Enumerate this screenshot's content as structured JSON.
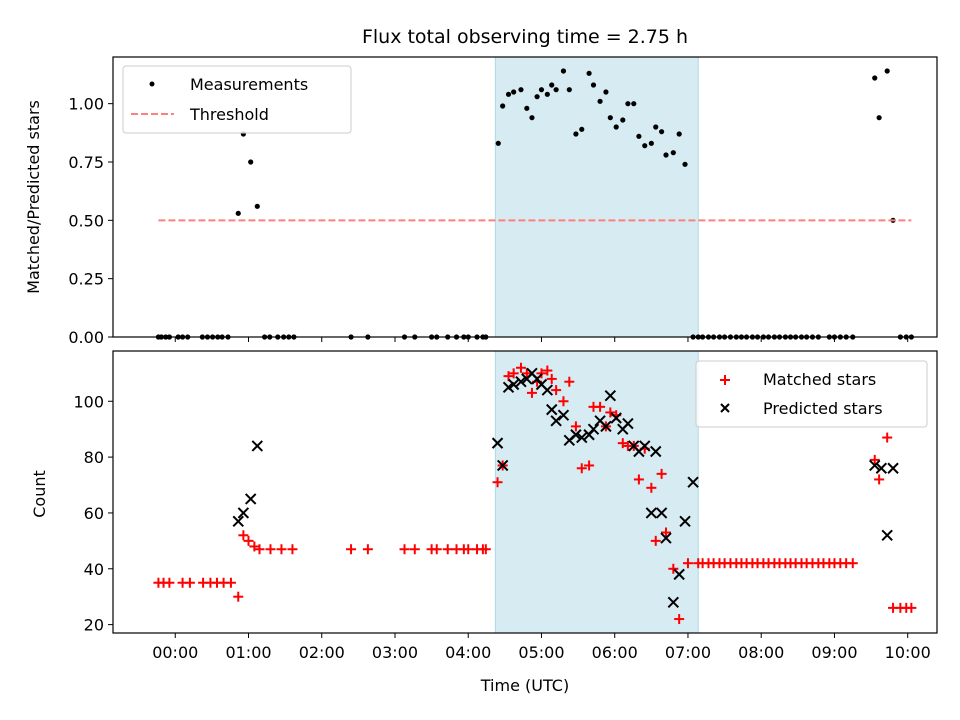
{
  "chart_data": [
    {
      "type": "scatter",
      "title": "Flux total observing time = 2.75 h",
      "xlabel": "",
      "ylabel": "Matched/Predicted stars",
      "ylim": [
        0,
        1.2
      ],
      "yticks": [
        0,
        0.25,
        0.5,
        0.75,
        1.0
      ],
      "ytick_labels": [
        "0.00",
        "0.25",
        "0.50",
        "0.75",
        "1.00"
      ],
      "xlim_hours": [
        -0.85,
        10.4
      ],
      "xticks_hours": [
        0,
        1,
        2,
        3,
        4,
        5,
        6,
        7,
        8,
        9,
        10
      ],
      "legend_position": "upper-left",
      "shaded_span_hours": [
        4.37,
        7.14
      ],
      "shaded_color": "#add8e6",
      "series": [
        {
          "name": "Measurements",
          "kind": "points",
          "color": "#000000",
          "x": [
            -0.23,
            -0.19,
            -0.13,
            -0.08,
            0.04,
            0.1,
            0.17,
            0.37,
            0.44,
            0.51,
            0.58,
            0.64,
            0.72,
            0.86,
            0.93,
            1.03,
            1.12,
            1.22,
            1.29,
            1.4,
            1.48,
            1.55,
            1.62,
            2.4,
            2.63,
            3.13,
            3.27,
            3.5,
            3.57,
            3.72,
            3.84,
            3.94,
            4.0,
            4.12,
            4.2,
            4.24,
            4.41,
            4.47,
            4.55,
            4.62,
            4.72,
            4.8,
            4.87,
            4.94,
            5.0,
            5.08,
            5.14,
            5.2,
            5.3,
            5.38,
            5.47,
            5.55,
            5.65,
            5.71,
            5.8,
            5.88,
            5.94,
            6.02,
            6.11,
            6.18,
            6.26,
            6.33,
            6.41,
            6.5,
            6.56,
            6.64,
            6.7,
            6.8,
            6.88,
            6.96,
            7.07,
            7.14,
            7.2,
            7.28,
            7.35,
            7.43,
            7.5,
            7.58,
            7.66,
            7.73,
            7.8,
            7.88,
            7.95,
            8.03,
            8.1,
            8.18,
            8.25,
            8.33,
            8.4,
            8.47,
            8.55,
            8.62,
            8.7,
            8.78,
            8.93,
            9.0,
            9.08,
            9.16,
            9.25,
            9.55,
            9.61,
            9.72,
            9.8,
            9.9,
            9.98,
            10.05
          ],
          "y": [
            0,
            0,
            0,
            0,
            0,
            0,
            0,
            0,
            0,
            0,
            0,
            0,
            0,
            0.53,
            0.87,
            0.75,
            0.56,
            0,
            0,
            0,
            0,
            0,
            0,
            0,
            0,
            0,
            0,
            0,
            0,
            0,
            0,
            0,
            0,
            0,
            0,
            0,
            0.83,
            0.99,
            1.04,
            1.05,
            1.06,
            0.98,
            0.94,
            1.03,
            1.06,
            1.04,
            1.08,
            1.06,
            1.14,
            1.06,
            0.87,
            0.89,
            1.13,
            1.08,
            1.01,
            1.05,
            0.94,
            0.9,
            0.93,
            1.0,
            1.0,
            0.86,
            0.82,
            0.83,
            0.9,
            0.88,
            0.78,
            0.79,
            0.87,
            0.74,
            0,
            0,
            0,
            0,
            0,
            0,
            0,
            0,
            0,
            0,
            0,
            0,
            0,
            0,
            0,
            0,
            0,
            0,
            0,
            0,
            0,
            0,
            0,
            0,
            0,
            0,
            0,
            0,
            0,
            1.11,
            0.94,
            1.14,
            0.5,
            0,
            0,
            0
          ]
        },
        {
          "name": "Threshold",
          "kind": "dashed-line",
          "color": "#ff7f7f",
          "x": [
            -0.23,
            10.05
          ],
          "y": [
            0.5,
            0.5
          ]
        }
      ]
    },
    {
      "type": "scatter",
      "title": "",
      "xlabel": "Time (UTC)",
      "ylabel": "Count",
      "ylim": [
        17,
        118
      ],
      "yticks": [
        20,
        40,
        60,
        80,
        100
      ],
      "ytick_labels": [
        "20",
        "40",
        "60",
        "80",
        "100"
      ],
      "xlim_hours": [
        -0.85,
        10.4
      ],
      "xticks_hours": [
        0,
        1,
        2,
        3,
        4,
        5,
        6,
        7,
        8,
        9,
        10
      ],
      "xtick_labels": [
        "00:00",
        "01:00",
        "02:00",
        "03:00",
        "04:00",
        "05:00",
        "06:00",
        "07:00",
        "08:00",
        "09:00",
        "10:00"
      ],
      "legend_position": "upper-right",
      "shaded_span_hours": [
        4.37,
        7.14
      ],
      "series": [
        {
          "name": "Matched stars",
          "marker": "+",
          "color": "#ff0000",
          "x": [
            -0.23,
            -0.16,
            -0.08,
            0.1,
            0.2,
            0.38,
            0.48,
            0.57,
            0.66,
            0.76,
            0.86,
            0.93,
            1.0,
            1.08,
            1.15,
            1.3,
            1.45,
            1.6,
            2.4,
            2.63,
            3.13,
            3.27,
            3.5,
            3.57,
            3.72,
            3.84,
            3.94,
            4.0,
            4.12,
            4.2,
            4.24,
            4.4,
            4.47,
            4.55,
            4.62,
            4.72,
            4.8,
            4.87,
            4.94,
            5.0,
            5.08,
            5.14,
            5.2,
            5.3,
            5.38,
            5.47,
            5.55,
            5.65,
            5.71,
            5.8,
            5.88,
            5.94,
            6.02,
            6.11,
            6.18,
            6.26,
            6.33,
            6.41,
            6.5,
            6.56,
            6.64,
            6.7,
            6.8,
            6.88,
            7.0,
            7.14,
            7.2,
            7.28,
            7.35,
            7.43,
            7.5,
            7.58,
            7.66,
            7.73,
            7.8,
            7.88,
            7.95,
            8.03,
            8.1,
            8.18,
            8.25,
            8.33,
            8.4,
            8.47,
            8.55,
            8.62,
            8.7,
            8.78,
            8.85,
            8.93,
            9.0,
            9.08,
            9.16,
            9.25,
            9.55,
            9.61,
            9.72,
            9.8,
            9.9,
            9.98,
            10.05
          ],
          "y": [
            35,
            35,
            35,
            35,
            35,
            35,
            35,
            35,
            35,
            35,
            30,
            52,
            50,
            48,
            47,
            47,
            47,
            47,
            47,
            47,
            47,
            47,
            47,
            47,
            47,
            47,
            47,
            47,
            47,
            47,
            47,
            71,
            77,
            109,
            110,
            112,
            110,
            103,
            107,
            110,
            111,
            108,
            104,
            100,
            107,
            91,
            76,
            77,
            98,
            98,
            91,
            96,
            95,
            85,
            84,
            84,
            72,
            83,
            69,
            50,
            74,
            53,
            40,
            22,
            42,
            42,
            42,
            42,
            42,
            42,
            42,
            42,
            42,
            42,
            42,
            42,
            42,
            42,
            42,
            42,
            42,
            42,
            42,
            42,
            42,
            42,
            42,
            42,
            42,
            42,
            42,
            42,
            42,
            42,
            79,
            72,
            87,
            26,
            26,
            26,
            26
          ]
        },
        {
          "name": "Predicted stars",
          "marker": "x",
          "color": "#000000",
          "x": [
            0.86,
            0.93,
            1.03,
            1.12,
            4.4,
            4.47,
            4.55,
            4.62,
            4.72,
            4.8,
            4.87,
            4.94,
            5.0,
            5.08,
            5.14,
            5.2,
            5.3,
            5.38,
            5.47,
            5.55,
            5.65,
            5.71,
            5.8,
            5.88,
            5.94,
            6.02,
            6.11,
            6.18,
            6.26,
            6.33,
            6.41,
            6.5,
            6.56,
            6.64,
            6.7,
            6.8,
            6.88,
            6.96,
            7.07,
            9.55,
            9.64,
            9.72,
            9.8
          ],
          "y": [
            57,
            60,
            65,
            84,
            85,
            77,
            105,
            106,
            107,
            108,
            110,
            108,
            106,
            104,
            97,
            93,
            95,
            86,
            88,
            87,
            88,
            90,
            93,
            91,
            102,
            94,
            90,
            92,
            84,
            82,
            84,
            60,
            82,
            60,
            51,
            28,
            38,
            57,
            71,
            77,
            76,
            52,
            76
          ]
        }
      ]
    }
  ]
}
